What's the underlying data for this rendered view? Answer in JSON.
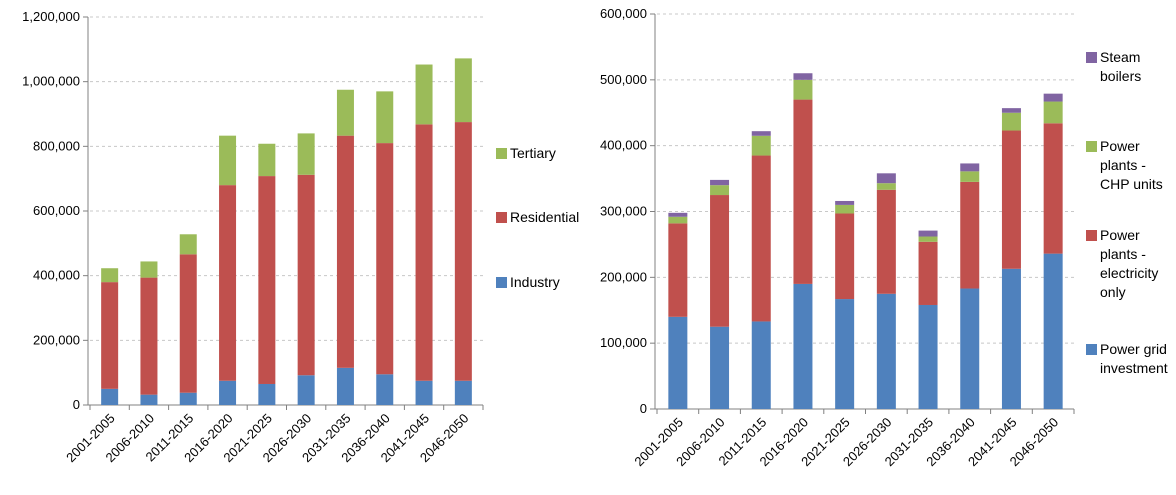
{
  "chart_data": [
    {
      "type": "bar",
      "stacked": true,
      "title": "",
      "xlabel": "",
      "ylabel": "",
      "ylim": [
        0,
        1200000
      ],
      "yticks": [
        0,
        200000,
        400000,
        600000,
        800000,
        1000000,
        1200000
      ],
      "ytick_labels": [
        "0",
        "200,000",
        "400,000",
        "600,000",
        "800,000",
        "1,000,000",
        "1,200,000"
      ],
      "grid": true,
      "legend_position": "right",
      "categories": [
        "2001-2005",
        "2006-2010",
        "2011-2015",
        "2016-2020",
        "2021-2025",
        "2026-2030",
        "2031-2035",
        "2036-2040",
        "2041-2045",
        "2046-2050"
      ],
      "series": [
        {
          "name": "Industry",
          "color": "#4f81bd",
          "values": [
            50000,
            32000,
            38000,
            75000,
            65000,
            92000,
            115000,
            95000,
            75000,
            75000
          ]
        },
        {
          "name": "Residential",
          "color": "#c0504d",
          "values": [
            330000,
            362000,
            428000,
            605000,
            643000,
            620000,
            718000,
            715000,
            793000,
            800000
          ]
        },
        {
          "name": "Tertiary",
          "color": "#9bbb59",
          "values": [
            43000,
            50000,
            62000,
            153000,
            100000,
            128000,
            142000,
            160000,
            185000,
            197000
          ]
        }
      ]
    },
    {
      "type": "bar",
      "stacked": true,
      "title": "",
      "xlabel": "",
      "ylabel": "",
      "ylim": [
        0,
        600000
      ],
      "yticks": [
        0,
        100000,
        200000,
        300000,
        400000,
        500000,
        600000
      ],
      "ytick_labels": [
        "0",
        "100,000",
        "200,000",
        "300,000",
        "400,000",
        "500,000",
        "600,000"
      ],
      "grid": true,
      "legend_position": "right",
      "categories": [
        "2001-2005",
        "2006-2010",
        "2011-2015",
        "2016-2020",
        "2021-2025",
        "2026-2030",
        "2031-2035",
        "2036-2040",
        "2041-2045",
        "2046-2050"
      ],
      "series": [
        {
          "name": "Power grid investment",
          "legend_lines": [
            "Power grid",
            "investment"
          ],
          "color": "#4f81bd",
          "values": [
            140000,
            125000,
            133000,
            190000,
            167000,
            175000,
            158000,
            183000,
            213000,
            236000
          ]
        },
        {
          "name": "Power plants - electricity only",
          "legend_lines": [
            "Power",
            "plants -",
            "electricity",
            "only"
          ],
          "color": "#c0504d",
          "values": [
            142000,
            200000,
            252000,
            280000,
            130000,
            158000,
            96000,
            162000,
            210000,
            198000
          ]
        },
        {
          "name": "Power plants - CHP units",
          "legend_lines": [
            "Power",
            "plants -",
            "CHP units"
          ],
          "color": "#9bbb59",
          "values": [
            10000,
            15000,
            30000,
            30000,
            13000,
            10000,
            8000,
            16000,
            27000,
            33000
          ]
        },
        {
          "name": "Steam boilers",
          "legend_lines": [
            "Steam",
            "boilers"
          ],
          "color": "#8064a2",
          "values": [
            6000,
            8000,
            7000,
            10000,
            6000,
            15000,
            9000,
            12000,
            7000,
            12000
          ]
        }
      ]
    }
  ]
}
